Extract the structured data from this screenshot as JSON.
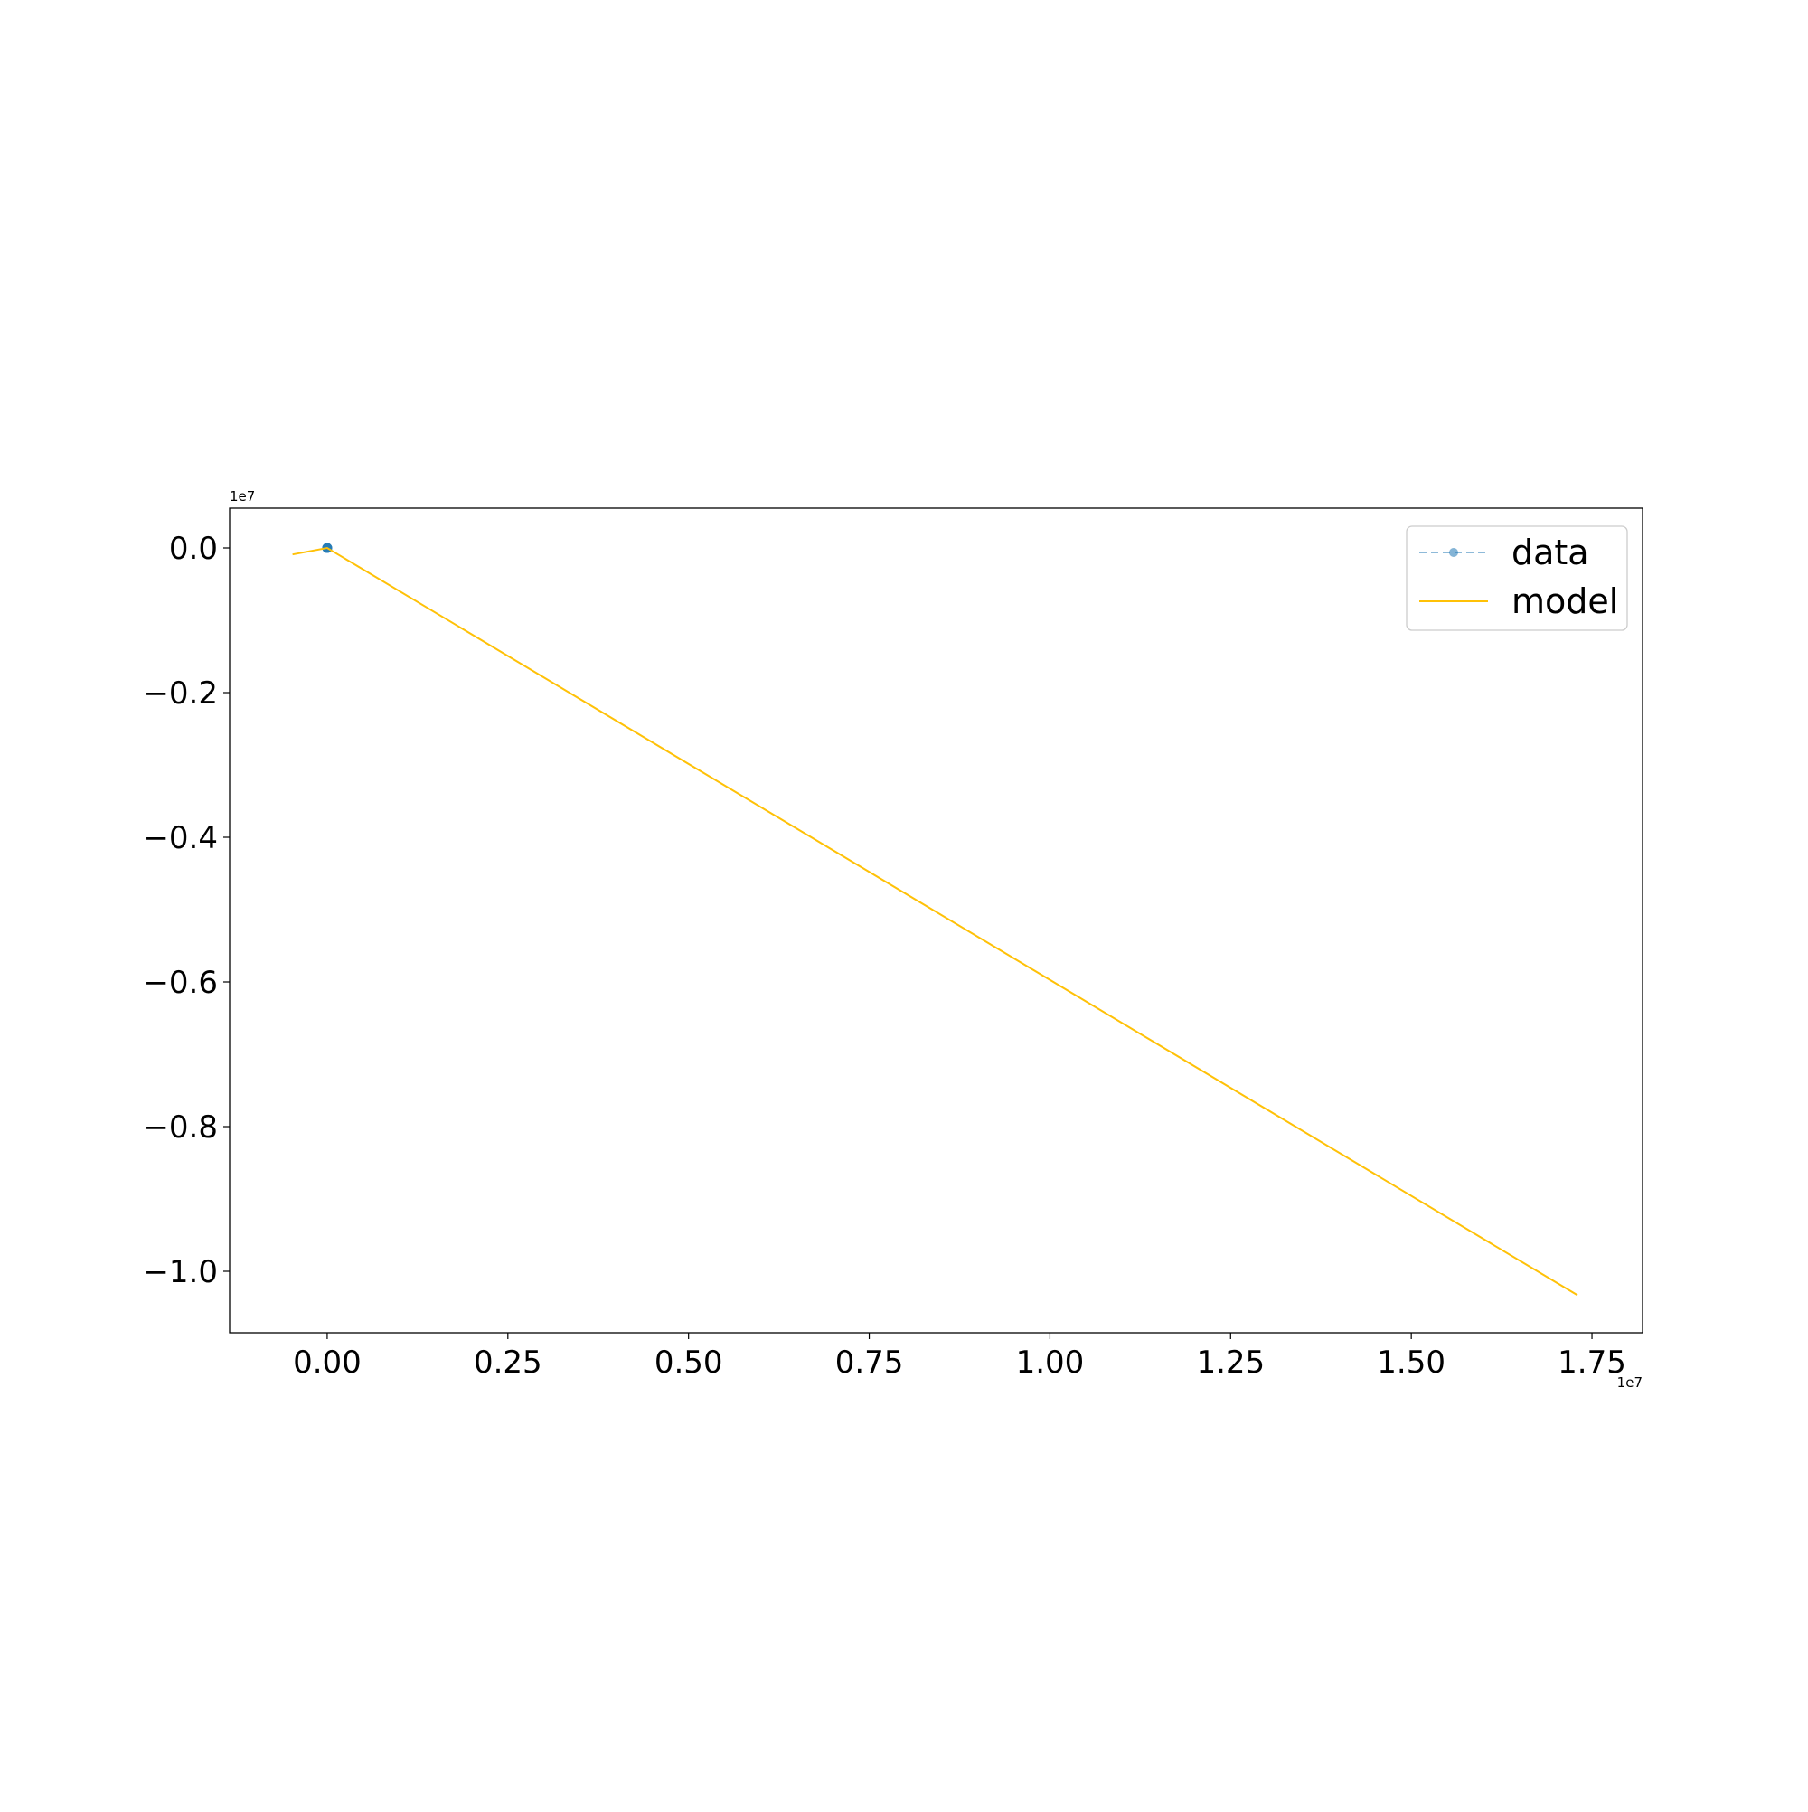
{
  "chart_data": {
    "type": "line",
    "title": "",
    "xlabel": "",
    "ylabel": "",
    "x_offset_label": "1e7",
    "y_offset_label": "1e7",
    "xlim": [
      -0.135,
      1.82
    ],
    "ylim": [
      -1.085,
      0.055
    ],
    "x_ticks": [
      0.0,
      0.25,
      0.5,
      0.75,
      1.0,
      1.25,
      1.5,
      1.75
    ],
    "x_tick_labels": [
      "0.00",
      "0.25",
      "0.50",
      "0.75",
      "1.00",
      "1.25",
      "1.50",
      "1.75"
    ],
    "y_ticks": [
      0.0,
      -0.2,
      -0.4,
      -0.6,
      -0.8,
      -1.0
    ],
    "y_tick_labels": [
      "0.0",
      "−0.2",
      "−0.4",
      "−0.6",
      "−0.8",
      "−1.0"
    ],
    "grid": false,
    "legend_position": "top-right",
    "series": [
      {
        "name": "data",
        "style": "dashed line with circle markers",
        "color": "#1f77b4",
        "x": [
          0.0,
          0.0,
          0.0,
          0.0
        ],
        "y": [
          0.0,
          0.0,
          0.0,
          0.0
        ]
      },
      {
        "name": "model",
        "style": "solid line",
        "color": "#ffc107",
        "x": [
          -0.048,
          0.0,
          1.73
        ],
        "y": [
          -0.009,
          0.0,
          -1.033
        ]
      }
    ]
  }
}
